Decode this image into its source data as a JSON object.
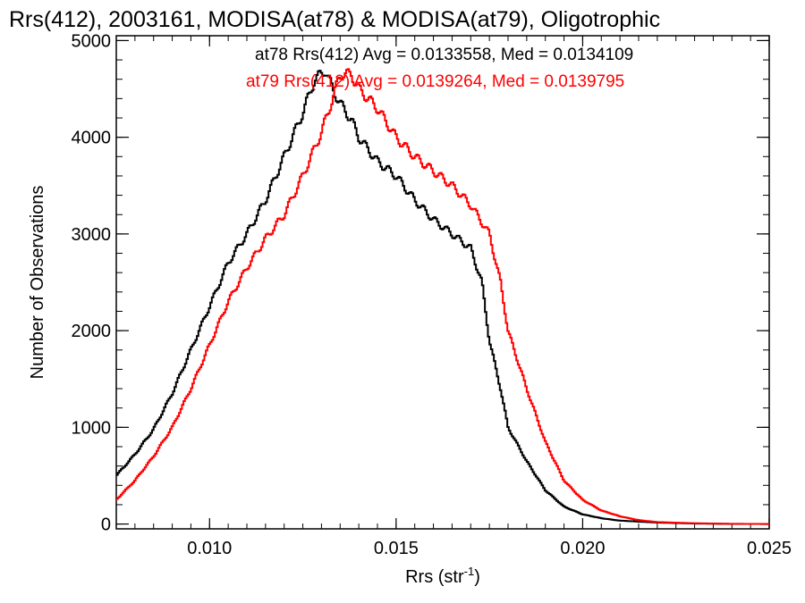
{
  "chart_data": {
    "type": "line",
    "title": "Rrs(412), 2003161, MODISA(at78) & MODISA(at79), Oligotrophic",
    "xlabel_base": "Rrs (str",
    "xlabel_sup": "-1",
    "xlabel_close": ")",
    "ylabel": "Number of Observations",
    "xlim": [
      0.0075,
      0.025
    ],
    "ylim": [
      -50,
      5050
    ],
    "x_tick_labels": [
      "0.010",
      "0.015",
      "0.020",
      "0.025"
    ],
    "x_ticks": [
      0.01,
      0.015,
      0.02,
      0.025
    ],
    "y_tick_labels": [
      "0",
      "1000",
      "2000",
      "3000",
      "4000",
      "5000"
    ],
    "y_ticks": [
      0,
      1000,
      2000,
      3000,
      4000,
      5000
    ],
    "grid": false,
    "step_histogram": true,
    "series": [
      {
        "name": "at78 Rrs(412) Avg = 0.0133558, Med = 0.0134109",
        "color": "#000000",
        "points": [
          [
            0.0075,
            500
          ],
          [
            0.008,
            720
          ],
          [
            0.0085,
            980
          ],
          [
            0.009,
            1350
          ],
          [
            0.0095,
            1800
          ],
          [
            0.01,
            2250
          ],
          [
            0.0105,
            2700
          ],
          [
            0.011,
            3000
          ],
          [
            0.0115,
            3350
          ],
          [
            0.012,
            3800
          ],
          [
            0.0125,
            4250
          ],
          [
            0.0128,
            4580
          ],
          [
            0.0131,
            4700
          ],
          [
            0.0133,
            4500
          ],
          [
            0.0135,
            4350
          ],
          [
            0.0138,
            4180
          ],
          [
            0.014,
            4000
          ],
          [
            0.0145,
            3750
          ],
          [
            0.015,
            3600
          ],
          [
            0.0155,
            3350
          ],
          [
            0.016,
            3150
          ],
          [
            0.0165,
            3000
          ],
          [
            0.017,
            2850
          ],
          [
            0.0173,
            2500
          ],
          [
            0.0175,
            1900
          ],
          [
            0.0178,
            1400
          ],
          [
            0.018,
            1000
          ],
          [
            0.0185,
            650
          ],
          [
            0.019,
            350
          ],
          [
            0.0195,
            180
          ],
          [
            0.02,
            100
          ],
          [
            0.0205,
            60
          ],
          [
            0.021,
            35
          ],
          [
            0.022,
            15
          ],
          [
            0.023,
            5
          ],
          [
            0.024,
            1
          ],
          [
            0.025,
            0
          ]
        ]
      },
      {
        "name": "at79 Rrs(412) Avg = 0.0139264, Med = 0.0139795",
        "color": "#ff0000",
        "points": [
          [
            0.0075,
            250
          ],
          [
            0.008,
            450
          ],
          [
            0.0085,
            700
          ],
          [
            0.009,
            1000
          ],
          [
            0.0095,
            1400
          ],
          [
            0.01,
            1850
          ],
          [
            0.0105,
            2300
          ],
          [
            0.011,
            2650
          ],
          [
            0.0115,
            2950
          ],
          [
            0.012,
            3200
          ],
          [
            0.0125,
            3600
          ],
          [
            0.013,
            4050
          ],
          [
            0.0133,
            4400
          ],
          [
            0.0135,
            4650
          ],
          [
            0.0138,
            4650
          ],
          [
            0.014,
            4500
          ],
          [
            0.0145,
            4300
          ],
          [
            0.015,
            4000
          ],
          [
            0.0155,
            3800
          ],
          [
            0.016,
            3650
          ],
          [
            0.0165,
            3500
          ],
          [
            0.017,
            3300
          ],
          [
            0.0175,
            3000
          ],
          [
            0.0178,
            2500
          ],
          [
            0.018,
            2000
          ],
          [
            0.0185,
            1400
          ],
          [
            0.019,
            850
          ],
          [
            0.0195,
            450
          ],
          [
            0.02,
            250
          ],
          [
            0.0205,
            140
          ],
          [
            0.021,
            80
          ],
          [
            0.0215,
            40
          ],
          [
            0.022,
            20
          ],
          [
            0.023,
            8
          ],
          [
            0.024,
            2
          ],
          [
            0.025,
            0
          ]
        ]
      }
    ]
  }
}
